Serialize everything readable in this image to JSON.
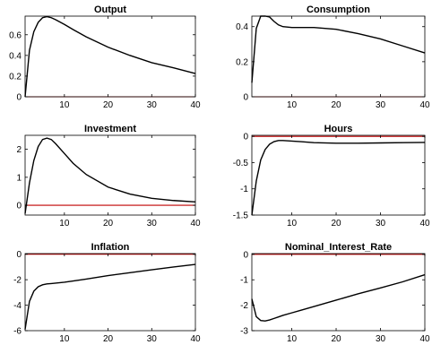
{
  "chart_data": [
    {
      "type": "line",
      "title": "Output",
      "xlim": [
        1,
        40
      ],
      "ylim": [
        0,
        0.78
      ],
      "xticks": [
        10,
        20,
        30,
        40
      ],
      "yticks": [
        0,
        0.2,
        0.4,
        0.6
      ],
      "ytick_labels": [
        "0",
        "0.2",
        "0.4",
        "0.6"
      ],
      "zero_line": 0,
      "x": [
        1,
        2,
        3,
        4,
        5,
        6,
        7,
        8,
        10,
        12,
        15,
        20,
        25,
        30,
        35,
        40
      ],
      "values": [
        0.0,
        0.45,
        0.63,
        0.72,
        0.765,
        0.775,
        0.765,
        0.745,
        0.7,
        0.65,
        0.58,
        0.48,
        0.4,
        0.33,
        0.28,
        0.225
      ]
    },
    {
      "type": "line",
      "title": "Consumption",
      "xlim": [
        1,
        40
      ],
      "ylim": [
        0,
        0.46
      ],
      "xticks": [
        10,
        20,
        30,
        40
      ],
      "yticks": [
        0,
        0.2,
        0.4
      ],
      "ytick_labels": [
        "0",
        "0.2",
        "0.4"
      ],
      "zero_line": 0,
      "x": [
        1,
        2,
        3,
        4,
        5,
        6,
        7,
        8,
        10,
        12,
        15,
        20,
        25,
        30,
        35,
        40
      ],
      "values": [
        0.08,
        0.39,
        0.46,
        0.46,
        0.455,
        0.43,
        0.41,
        0.4,
        0.395,
        0.395,
        0.395,
        0.385,
        0.36,
        0.33,
        0.29,
        0.25
      ]
    },
    {
      "type": "line",
      "title": "Investment",
      "xlim": [
        1,
        40
      ],
      "ylim": [
        -0.35,
        2.5
      ],
      "xticks": [
        10,
        20,
        30,
        40
      ],
      "yticks": [
        0,
        1,
        2
      ],
      "ytick_labels": [
        "0",
        "1",
        "2"
      ],
      "zero_line": 0,
      "x": [
        1,
        2,
        3,
        4,
        5,
        6,
        7,
        8,
        10,
        12,
        15,
        20,
        25,
        30,
        35,
        40
      ],
      "values": [
        -0.3,
        0.8,
        1.6,
        2.1,
        2.35,
        2.4,
        2.35,
        2.2,
        1.85,
        1.5,
        1.1,
        0.65,
        0.4,
        0.25,
        0.17,
        0.12
      ]
    },
    {
      "type": "line",
      "title": "Hours",
      "xlim": [
        1,
        40
      ],
      "ylim": [
        -1.5,
        0.02
      ],
      "xticks": [
        10,
        20,
        30,
        40
      ],
      "yticks": [
        -1.5,
        -1,
        -0.5,
        0
      ],
      "ytick_labels": [
        "-1.5",
        "-1",
        "-0.5",
        "0"
      ],
      "zero_line": 0,
      "x": [
        1,
        2,
        3,
        4,
        5,
        6,
        7,
        8,
        10,
        12,
        15,
        20,
        25,
        30,
        35,
        40
      ],
      "values": [
        -1.5,
        -0.85,
        -0.45,
        -0.25,
        -0.15,
        -0.1,
        -0.08,
        -0.08,
        -0.09,
        -0.1,
        -0.12,
        -0.13,
        -0.13,
        -0.125,
        -0.12,
        -0.115
      ]
    },
    {
      "type": "line",
      "title": "Inflation",
      "xlim": [
        1,
        40
      ],
      "ylim": [
        -6,
        0.05
      ],
      "xticks": [
        10,
        20,
        30,
        40
      ],
      "yticks": [
        -6,
        -4,
        -2,
        0
      ],
      "ytick_labels": [
        "-6",
        "-4",
        "-2",
        "0"
      ],
      "zero_line": 0,
      "x": [
        1,
        2,
        3,
        4,
        5,
        6,
        7,
        8,
        10,
        12,
        15,
        20,
        25,
        30,
        35,
        40
      ],
      "values": [
        -5.9,
        -3.7,
        -2.9,
        -2.55,
        -2.4,
        -2.33,
        -2.3,
        -2.27,
        -2.2,
        -2.1,
        -1.95,
        -1.68,
        -1.45,
        -1.22,
        -1.0,
        -0.8
      ]
    },
    {
      "type": "line",
      "title": "Nominal_Interest_Rate",
      "xlim": [
        1,
        40
      ],
      "ylim": [
        -3,
        0.03
      ],
      "xticks": [
        10,
        20,
        30,
        40
      ],
      "yticks": [
        -3,
        -2,
        -1,
        0
      ],
      "ytick_labels": [
        "-3",
        "-2",
        "-1",
        "0"
      ],
      "zero_line": 0,
      "x": [
        1,
        2,
        3,
        4,
        5,
        6,
        7,
        8,
        10,
        12,
        15,
        20,
        25,
        30,
        35,
        40
      ],
      "values": [
        -1.75,
        -2.45,
        -2.6,
        -2.62,
        -2.58,
        -2.52,
        -2.46,
        -2.4,
        -2.3,
        -2.2,
        -2.05,
        -1.8,
        -1.55,
        -1.32,
        -1.08,
        -0.8
      ]
    }
  ]
}
